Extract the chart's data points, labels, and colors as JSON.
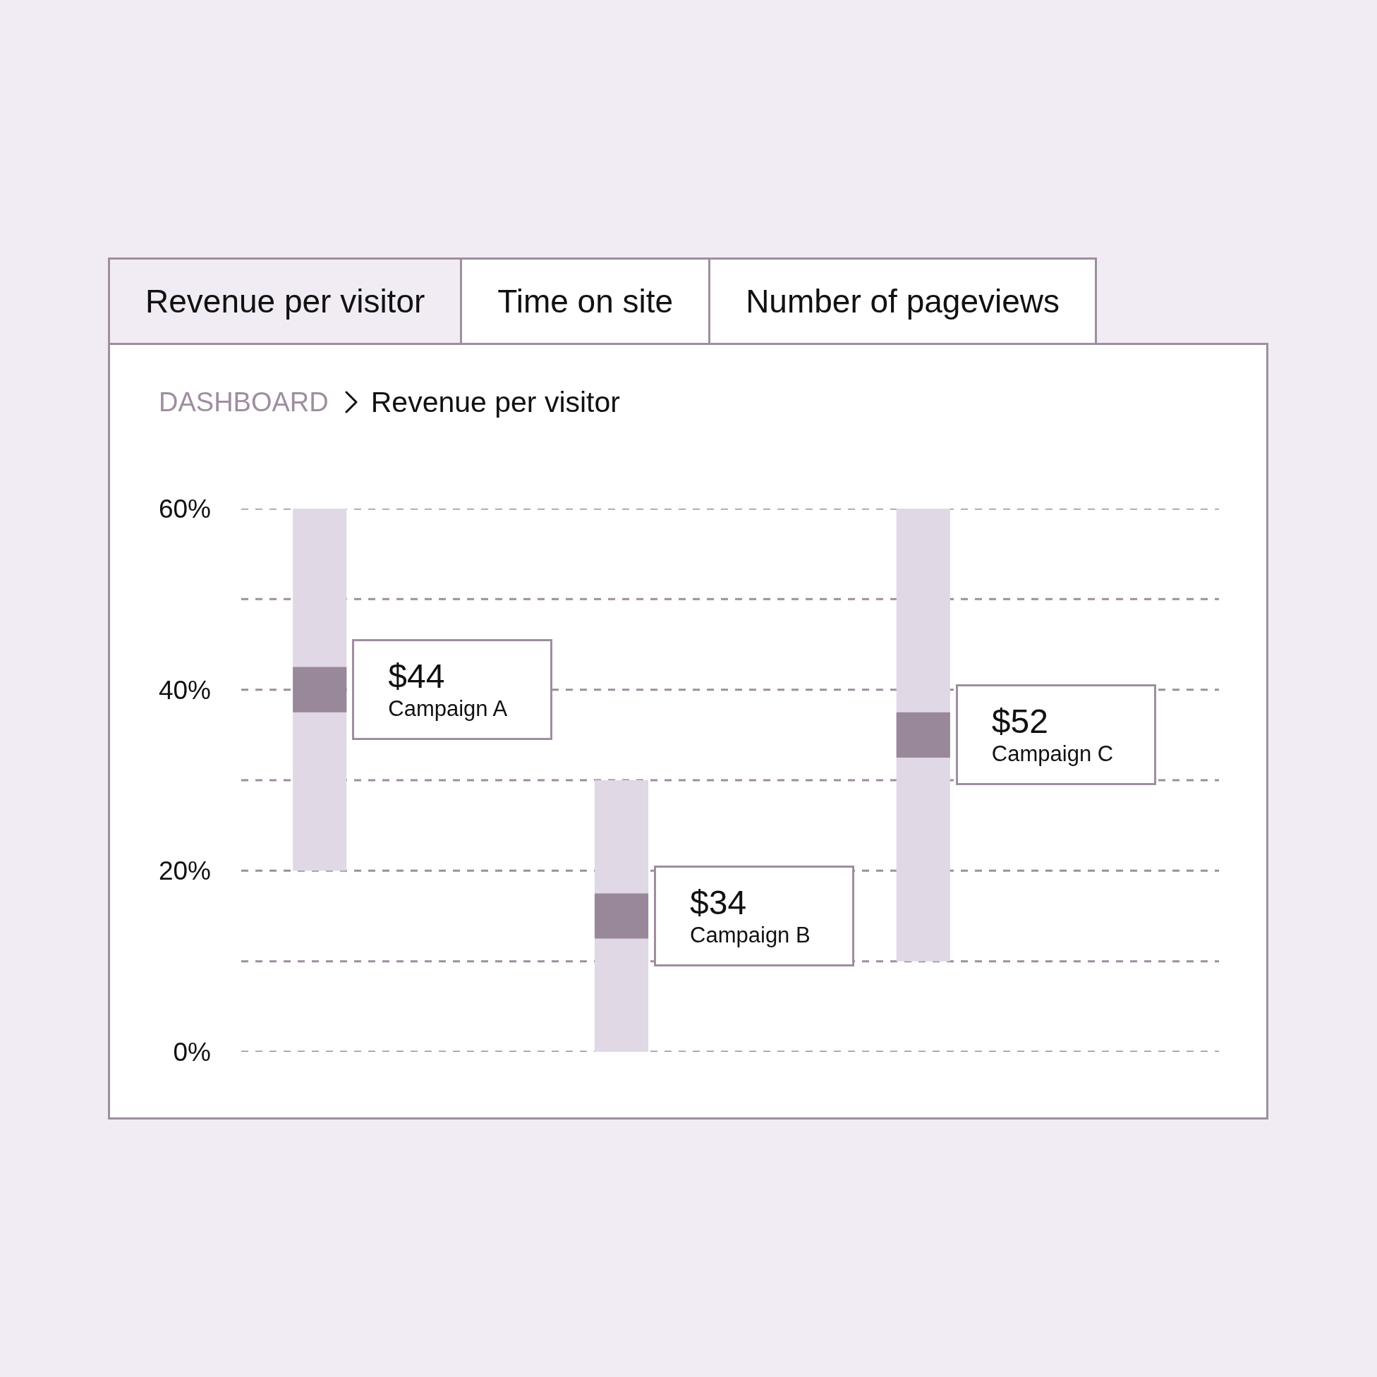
{
  "chart_data": {
    "type": "bar",
    "title": "Revenue per visitor",
    "subtitle": "DASHBOARD",
    "categories": [
      "Campaign A",
      "Campaign B",
      "Campaign C"
    ],
    "series": [
      {
        "color": "#e0d8e4",
        "base": [
          20,
          0,
          10
        ],
        "values": [
          40,
          30,
          50
        ]
      },
      {
        "color": "#998899",
        "base": [
          37.5,
          12.5,
          32.5
        ],
        "values": [
          5,
          5,
          5
        ]
      }
    ],
    "ylim": [
      0,
      60
    ],
    "yticks": [
      {
        "value": 0,
        "label": "0%"
      },
      {
        "value": 10,
        "label": null
      },
      {
        "value": 20,
        "label": "20%"
      },
      {
        "value": 30,
        "label": null
      },
      {
        "value": 40,
        "label": "40%"
      },
      {
        "value": 50,
        "label": null
      },
      {
        "value": 60,
        "label": "60%"
      }
    ],
    "grid": "y",
    "tick_labels": "y",
    "annotations": [
      "Revenue per visitor",
      "Time on site",
      "Number of pageviews",
      "$44",
      "$34",
      "$52"
    ]
  }
}
